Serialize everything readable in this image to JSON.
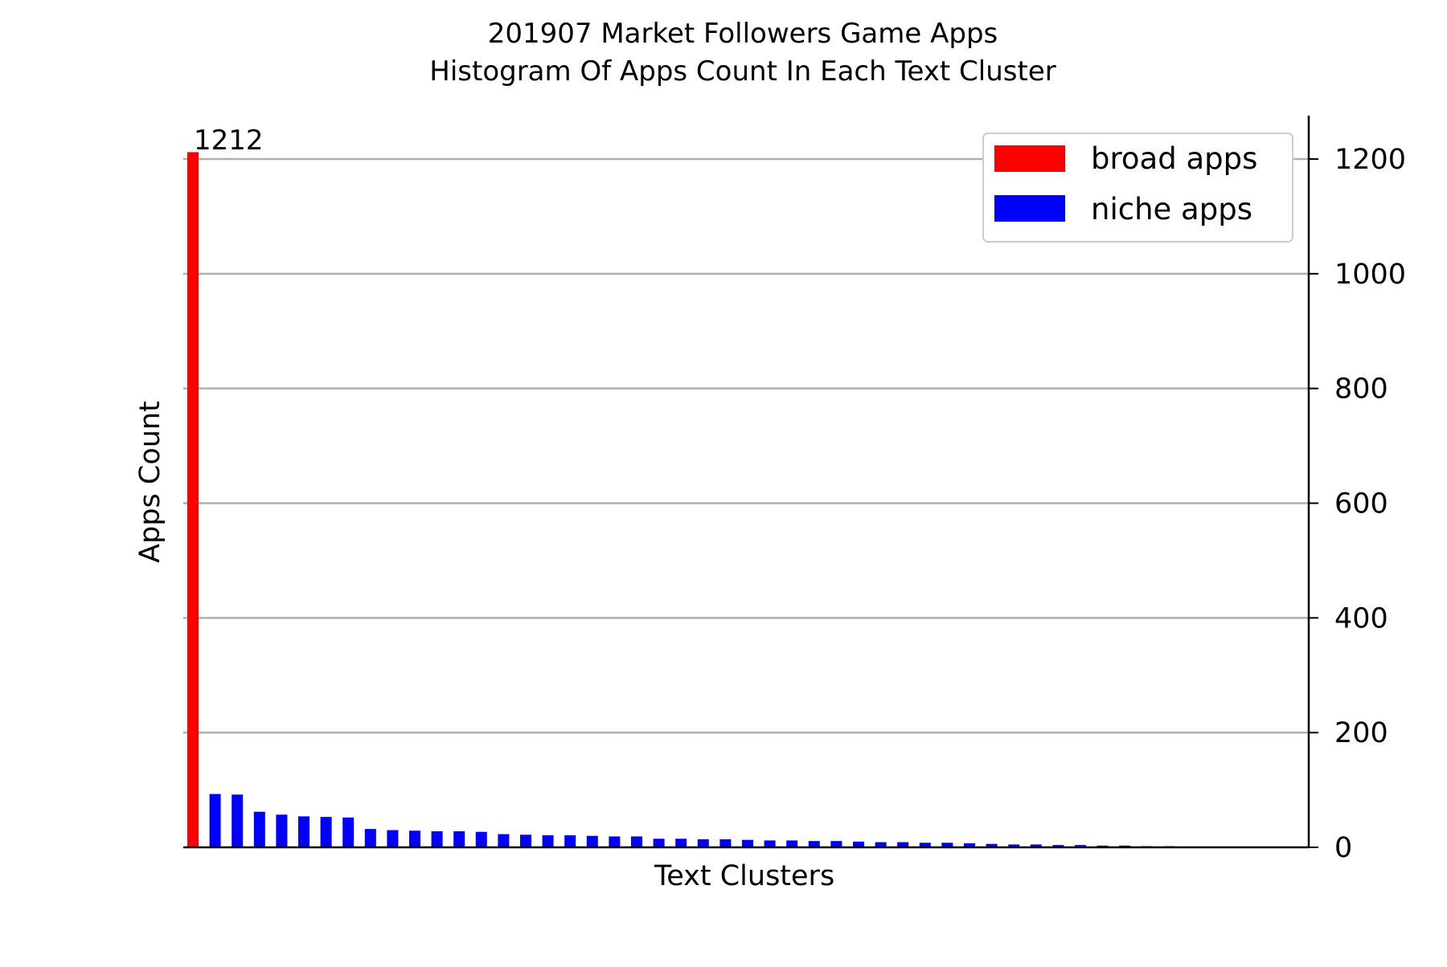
{
  "chart_data": {
    "type": "bar",
    "title_line1": "201907 Market Followers Game Apps",
    "title_line2": "Histogram Of Apps Count In Each Text Cluster",
    "xlabel": "Text Clusters",
    "ylabel": "Apps Count",
    "ylim": [
      0,
      1270
    ],
    "yticks": [
      0,
      200,
      400,
      600,
      800,
      1000,
      1200
    ],
    "y_axis_side": "right",
    "grid": "horizontal",
    "legend_position": "top-right",
    "annotation": "1212",
    "series": [
      {
        "name": "broad apps",
        "color": "#ff0000",
        "values": [
          1212
        ]
      },
      {
        "name": "niche apps",
        "color": "#0000ff",
        "values": [
          93,
          92,
          62,
          57,
          54,
          53,
          52,
          32,
          30,
          29,
          28,
          28,
          27,
          23,
          22,
          21,
          21,
          20,
          19,
          19,
          15,
          15,
          14,
          14,
          13,
          12,
          12,
          11,
          11,
          10,
          9,
          9,
          8,
          8,
          7,
          6,
          5,
          5,
          4,
          4,
          3,
          3,
          2,
          2,
          1
        ]
      }
    ]
  }
}
